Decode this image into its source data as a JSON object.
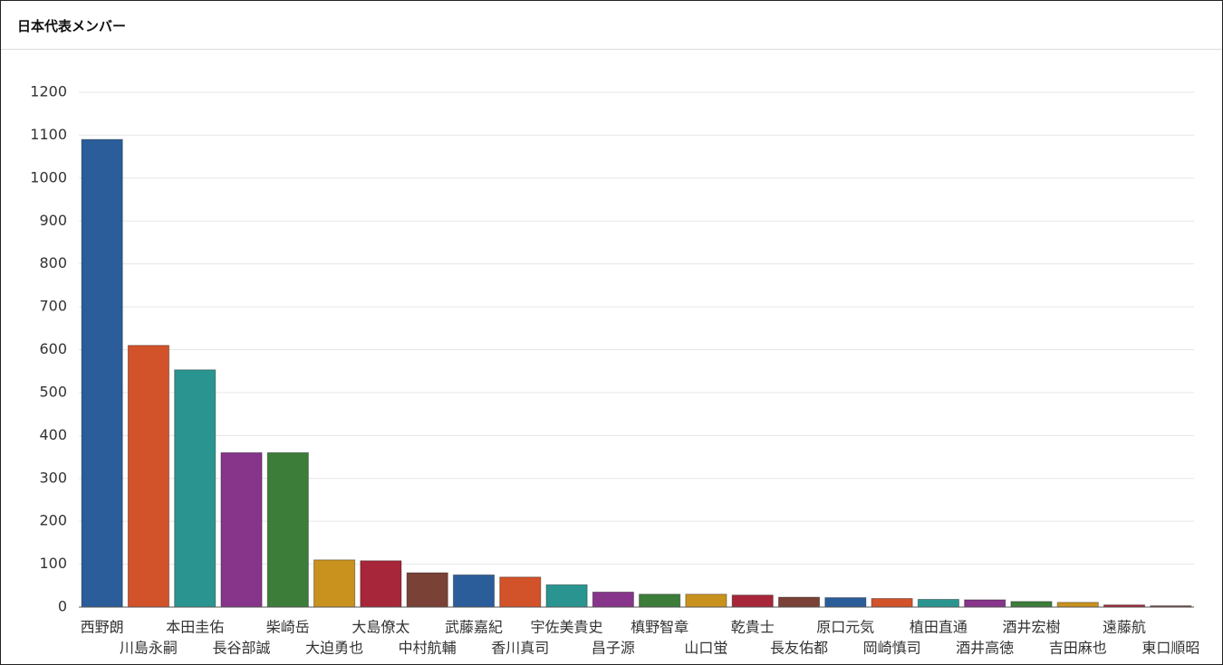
{
  "chart_data": {
    "type": "bar",
    "title": "日本代表メンバー",
    "categories": [
      "西野朗",
      "川島永嗣",
      "本田圭佑",
      "長谷部誠",
      "柴崎岳",
      "大迫勇也",
      "大島僚太",
      "中村航輔",
      "武藤嘉紀",
      "香川真司",
      "宇佐美貴史",
      "昌子源",
      "槙野智章",
      "山口蛍",
      "乾貴士",
      "長友佑都",
      "原口元気",
      "岡崎慎司",
      "植田直通",
      "酒井高徳",
      "酒井宏樹",
      "吉田麻也",
      "遠藤航",
      "東口順昭"
    ],
    "values": [
      1090,
      610,
      553,
      360,
      360,
      110,
      108,
      80,
      75,
      70,
      52,
      35,
      30,
      30,
      28,
      23,
      22,
      20,
      18,
      17,
      13,
      11,
      5,
      3
    ],
    "colors": [
      "#2a5d9a",
      "#d2522a",
      "#2a9590",
      "#86358a",
      "#3d7d3a",
      "#c9921f",
      "#a82639",
      "#7a4137"
    ],
    "ylim": [
      0,
      1200
    ],
    "yticks": [
      0,
      100,
      200,
      300,
      400,
      500,
      600,
      700,
      800,
      900,
      1000,
      1100,
      1200
    ],
    "grid": true
  }
}
